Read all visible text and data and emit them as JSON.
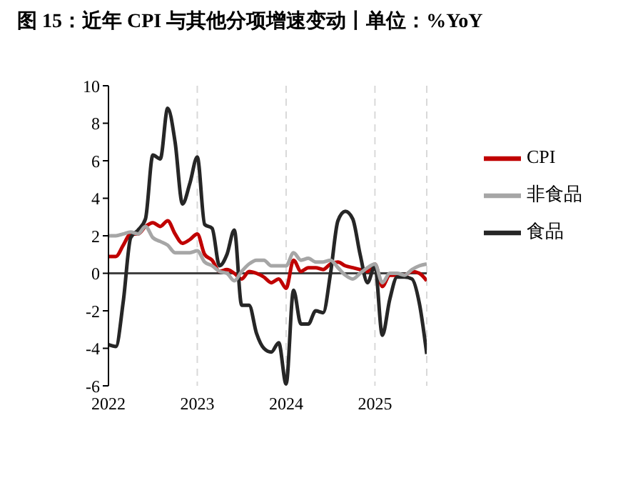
{
  "chart_data": {
    "type": "line",
    "title": "图 15：近年 CPI 与其他分项增速变动丨单位：%YoY",
    "x": [
      "2022-01",
      "2022-02",
      "2022-03",
      "2022-04",
      "2022-05",
      "2022-06",
      "2022-07",
      "2022-08",
      "2022-09",
      "2022-10",
      "2022-11",
      "2022-12",
      "2023-01",
      "2023-02",
      "2023-03",
      "2023-04",
      "2023-05",
      "2023-06",
      "2023-07",
      "2023-08",
      "2023-09",
      "2023-10",
      "2023-11",
      "2023-12",
      "2024-01",
      "2024-02",
      "2024-03",
      "2024-04",
      "2024-05",
      "2024-06",
      "2024-07",
      "2024-08",
      "2024-09",
      "2024-10",
      "2024-11",
      "2024-12",
      "2025-01",
      "2025-02",
      "2025-03",
      "2025-04",
      "2025-05",
      "2025-06",
      "2025-07",
      "2025-08"
    ],
    "series": [
      {
        "name": "CPI",
        "color": "#c00000",
        "values": [
          0.9,
          0.9,
          1.5,
          2.1,
          2.1,
          2.5,
          2.7,
          2.5,
          2.8,
          2.1,
          1.6,
          1.8,
          2.1,
          1.0,
          0.7,
          0.1,
          0.2,
          0.0,
          -0.3,
          0.1,
          0.0,
          -0.2,
          -0.5,
          -0.3,
          -0.8,
          0.7,
          0.1,
          0.3,
          0.3,
          0.2,
          0.5,
          0.6,
          0.4,
          0.3,
          0.2,
          0.1,
          0.5,
          -0.7,
          -0.1,
          -0.1,
          -0.1,
          0.1,
          0.0,
          -0.4
        ]
      },
      {
        "name": "食品",
        "color": "#262626",
        "values": [
          -3.8,
          -3.9,
          -1.5,
          1.9,
          2.3,
          2.9,
          6.3,
          6.1,
          8.8,
          7.0,
          3.7,
          4.8,
          6.2,
          2.6,
          2.4,
          0.4,
          1.0,
          2.3,
          -1.7,
          -1.7,
          -3.2,
          -4.0,
          -4.2,
          -3.7,
          -5.9,
          -0.9,
          -2.7,
          -2.7,
          -2.0,
          -2.1,
          0.0,
          2.8,
          3.3,
          2.9,
          1.0,
          -0.5,
          0.4,
          -3.3,
          -1.4,
          -0.2,
          -0.2,
          -0.3,
          -1.6,
          -4.3
        ]
      },
      {
        "name": "非食品",
        "color": "#a6a6a6",
        "values": [
          2.0,
          2.0,
          2.1,
          2.2,
          2.1,
          2.5,
          1.9,
          1.7,
          1.5,
          1.1,
          1.1,
          1.1,
          1.2,
          0.6,
          0.4,
          0.1,
          0.0,
          -0.4,
          0.1,
          0.5,
          0.7,
          0.7,
          0.4,
          0.4,
          0.4,
          1.1,
          0.7,
          0.8,
          0.6,
          0.6,
          0.7,
          0.3,
          -0.1,
          -0.3,
          0.0,
          0.3,
          0.5,
          -0.5,
          0.0,
          0.0,
          -0.1,
          0.2,
          0.4,
          0.5
        ]
      }
    ],
    "xlim": [
      "2022-01",
      "2025-08"
    ],
    "xticks": [
      "2022",
      "2023",
      "2024",
      "2025"
    ],
    "ylim": [
      -6,
      10
    ],
    "yticks": [
      -6,
      -4,
      -2,
      0,
      2,
      4,
      6,
      8,
      10
    ],
    "grid": "x",
    "legend": "top right",
    "marker": "none",
    "line_style": "solid"
  }
}
